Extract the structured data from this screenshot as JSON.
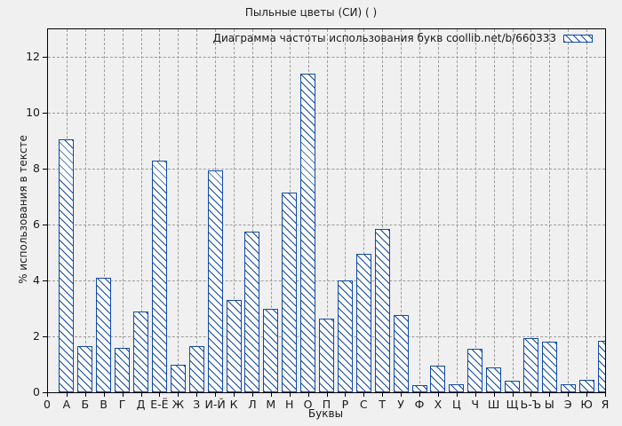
{
  "title": "Пыльные цветы (СИ) ( )",
  "legend_label": "Диаграмма частоты использования букв coollib.net/b/660333",
  "x_axis_label": "Буквы",
  "y_axis_label": "% использования в тексте",
  "x_origin_label": "0",
  "colors": {
    "background": "#f0f0f0",
    "bar_border": "#1149a6",
    "bar_fill": "#ffffff",
    "grid": "#9c9c9c",
    "axis": "#000000",
    "text": "#1a1a1a"
  },
  "chart_data": {
    "type": "bar",
    "title": "Пыльные цветы (СИ) ( )",
    "xlabel": "Буквы",
    "ylabel": "% использования в тексте",
    "legend_label": "Диаграмма частоты использования букв coollib.net/b/660333",
    "legend_position": "top-right",
    "grid": true,
    "hatch": "diagonal-backslash",
    "ylim": [
      0,
      13
    ],
    "yticks": [
      0,
      2,
      4,
      6,
      8,
      10,
      12
    ],
    "x_origin_label": "0",
    "categories": [
      "А",
      "Б",
      "В",
      "Г",
      "Д",
      "Е-Ё",
      "Ж",
      "З",
      "И-Й",
      "К",
      "Л",
      "М",
      "Н",
      "О",
      "П",
      "Р",
      "С",
      "Т",
      "У",
      "Ф",
      "Х",
      "Ц",
      "Ч",
      "Ш",
      "Щ",
      "Ь-Ъ",
      "Ы",
      "Э",
      "Ю",
      "Я"
    ],
    "values": [
      9.05,
      1.65,
      4.1,
      1.6,
      2.9,
      8.3,
      1.0,
      1.65,
      7.95,
      3.3,
      5.75,
      3.0,
      7.15,
      11.4,
      2.65,
      4.0,
      4.95,
      5.85,
      2.75,
      0.25,
      0.95,
      0.3,
      1.55,
      0.9,
      0.4,
      1.95,
      1.8,
      0.3,
      0.45,
      1.85
    ]
  }
}
